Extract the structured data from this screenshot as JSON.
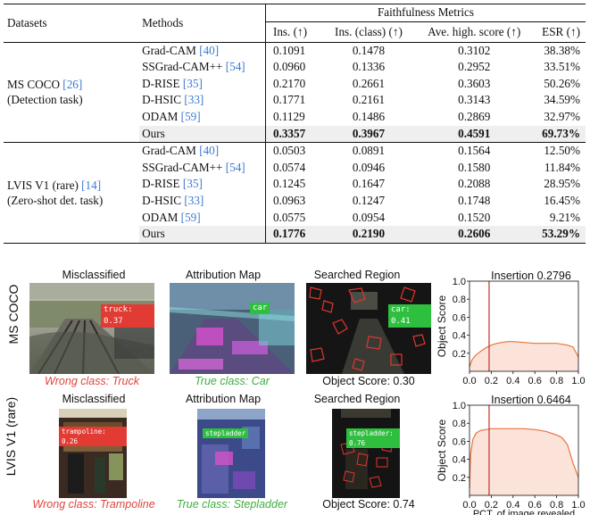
{
  "table": {
    "headers": {
      "datasets": "Datasets",
      "methods": "Methods",
      "group": "Faithfulness Metrics",
      "cols": [
        "Ins. (↑)",
        "Ins. (class) (↑)",
        "Ave. high. score (↑)",
        "ESR (↑)"
      ]
    },
    "groups": [
      {
        "dataset_line1": "MS COCO ",
        "dataset_ref1": "[26]",
        "dataset_line2": "(Detection task)",
        "rows": [
          {
            "method": "Grad-CAM ",
            "ref": "[40]",
            "vals": [
              "0.1091",
              "0.1478",
              "0.3102",
              "38.38%"
            ]
          },
          {
            "method": "SSGrad-CAM++ ",
            "ref": "[54]",
            "vals": [
              "0.0960",
              "0.1336",
              "0.2952",
              "33.51%"
            ]
          },
          {
            "method": "D-RISE ",
            "ref": "[35]",
            "vals": [
              "0.2170",
              "0.2661",
              "0.3603",
              "50.26%"
            ]
          },
          {
            "method": "D-HSIC ",
            "ref": "[33]",
            "vals": [
              "0.1771",
              "0.2161",
              "0.3143",
              "34.59%"
            ]
          },
          {
            "method": "ODAM ",
            "ref": "[59]",
            "vals": [
              "0.1129",
              "0.1486",
              "0.2869",
              "32.97%"
            ]
          }
        ],
        "ours": {
          "method": "Ours",
          "vals": [
            "0.3357",
            "0.3967",
            "0.4591",
            "69.73%"
          ]
        }
      },
      {
        "dataset_line1": "LVIS V1 (rare) ",
        "dataset_ref1": "[14]",
        "dataset_line2": "(Zero-shot det. task)",
        "rows": [
          {
            "method": "Grad-CAM ",
            "ref": "[40]",
            "vals": [
              "0.0503",
              "0.0891",
              "0.1564",
              "12.50%"
            ]
          },
          {
            "method": "SSGrad-CAM++ ",
            "ref": "[54]",
            "vals": [
              "0.0574",
              "0.0946",
              "0.1580",
              "11.84%"
            ]
          },
          {
            "method": "D-RISE ",
            "ref": "[35]",
            "vals": [
              "0.1245",
              "0.1647",
              "0.2088",
              "28.95%"
            ]
          },
          {
            "method": "D-HSIC ",
            "ref": "[33]",
            "vals": [
              "0.0963",
              "0.1247",
              "0.1748",
              "16.45%"
            ]
          },
          {
            "method": "ODAM ",
            "ref": "[59]",
            "vals": [
              "0.0575",
              "0.0954",
              "0.1520",
              "9.21%"
            ]
          }
        ],
        "ours": {
          "method": "Ours",
          "vals": [
            "0.1776",
            "0.2190",
            "0.2606",
            "53.29%"
          ]
        }
      }
    ]
  },
  "figure": {
    "rows": [
      {
        "label": "MS COCO",
        "titles": [
          "Misclassified",
          "Attribution Map",
          "Searched Region"
        ],
        "tag_wrong": "truck: 0.37",
        "tag_attr": "car",
        "tag_search": "car: 0.41",
        "cap_wrong": "Wrong class: Truck",
        "cap_true": "True class: Car",
        "cap_score": "Object Score: 0.30",
        "plot_title": "Insertion 0.2796"
      },
      {
        "label": "LVIS V1 (rare)",
        "titles": [
          "Misclassified",
          "Attribution Map",
          "Searched Region"
        ],
        "tag_wrong": "trampoline: 0.26",
        "tag_attr": "stepladder",
        "tag_search": "stepladder: 0.76",
        "cap_wrong": "Wrong class: Trampoline",
        "cap_true": "True class: Stepladder",
        "cap_score": "Object Score: 0.74",
        "plot_title": "Insertion 0.6464"
      }
    ],
    "colors": {
      "wrong": "#e0443c",
      "true": "#3fae3f",
      "curve": "#e8743e",
      "fill": "#fbe3da",
      "marker": "#c0322a"
    }
  },
  "chart_data": [
    {
      "type": "area",
      "title": "Insertion 0.2796",
      "xlabel": "",
      "ylabel": "Object Score",
      "xlim": [
        0.0,
        1.0
      ],
      "ylim": [
        0.0,
        1.0
      ],
      "xticks": [
        "0.0",
        "0.2",
        "0.4",
        "0.6",
        "0.8",
        "1.0"
      ],
      "yticks": [
        "0.2",
        "0.4",
        "0.6",
        "0.8",
        "1.0"
      ],
      "marker_x": 0.18,
      "x": [
        0.0,
        0.02,
        0.05,
        0.1,
        0.15,
        0.2,
        0.25,
        0.3,
        0.35,
        0.4,
        0.5,
        0.6,
        0.7,
        0.8,
        0.9,
        0.95,
        1.0
      ],
      "y": [
        0.05,
        0.12,
        0.17,
        0.22,
        0.26,
        0.29,
        0.31,
        0.32,
        0.33,
        0.33,
        0.32,
        0.31,
        0.31,
        0.31,
        0.29,
        0.27,
        0.16
      ]
    },
    {
      "type": "area",
      "title": "Insertion 0.6464",
      "xlabel": "PCT. of image revealed",
      "ylabel": "Object Score",
      "xlim": [
        0.0,
        1.0
      ],
      "ylim": [
        0.0,
        1.0
      ],
      "xticks": [
        "0.0",
        "0.2",
        "0.4",
        "0.6",
        "0.8",
        "1.0"
      ],
      "yticks": [
        "0.2",
        "0.4",
        "0.6",
        "0.8",
        "1.0"
      ],
      "marker_x": 0.18,
      "x": [
        0.0,
        0.01,
        0.03,
        0.06,
        0.1,
        0.15,
        0.2,
        0.3,
        0.4,
        0.5,
        0.6,
        0.7,
        0.8,
        0.85,
        0.9,
        0.95,
        1.0
      ],
      "y": [
        0.08,
        0.45,
        0.62,
        0.69,
        0.72,
        0.73,
        0.74,
        0.74,
        0.74,
        0.74,
        0.73,
        0.71,
        0.67,
        0.64,
        0.56,
        0.36,
        0.2
      ]
    }
  ]
}
